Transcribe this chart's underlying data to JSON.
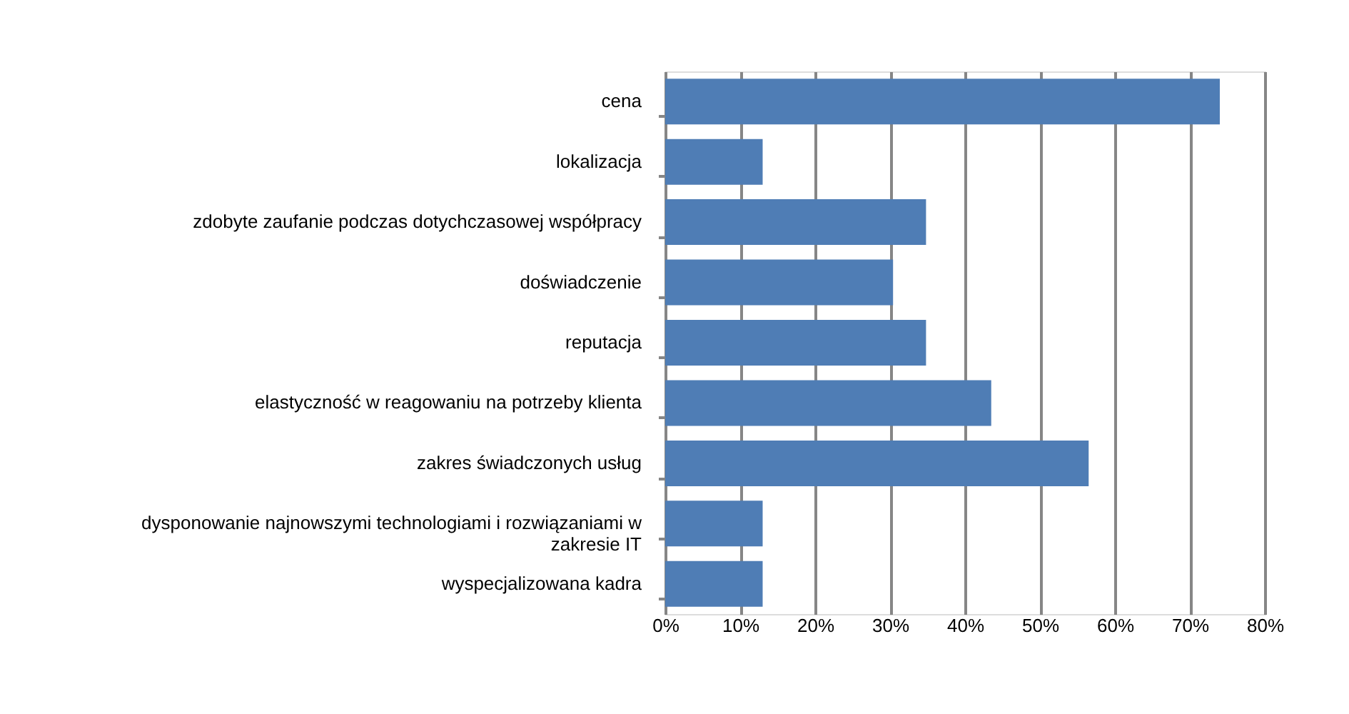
{
  "chart_data": {
    "type": "bar",
    "orientation": "horizontal",
    "categories": [
      "cena",
      "lokalizacja",
      "zdobyte zaufanie podczas dotychczasowej współpracy",
      "doświadczenie",
      "reputacja",
      "elastyczność w reagowaniu na potrzeby klienta",
      "zakres świadczonych usług",
      "dysponowanie najnowszymi technologiami i rozwiązaniami  w zakresie IT",
      "wyspecjalizowana kadra"
    ],
    "values": [
      74,
      13,
      34.8,
      30.4,
      34.8,
      43.5,
      56.5,
      13,
      13
    ],
    "color": "#4f7db5",
    "xlim": [
      0,
      80
    ],
    "xticks": [
      {
        "value": 0,
        "label": "0%"
      },
      {
        "value": 10,
        "label": "10%"
      },
      {
        "value": 20,
        "label": "20%"
      },
      {
        "value": 30,
        "label": "30%"
      },
      {
        "value": 40,
        "label": "40%"
      },
      {
        "value": 50,
        "label": "50%"
      },
      {
        "value": 60,
        "label": "60%"
      },
      {
        "value": 70,
        "label": "70%"
      },
      {
        "value": 80,
        "label": "80%"
      }
    ],
    "grid": "x"
  }
}
